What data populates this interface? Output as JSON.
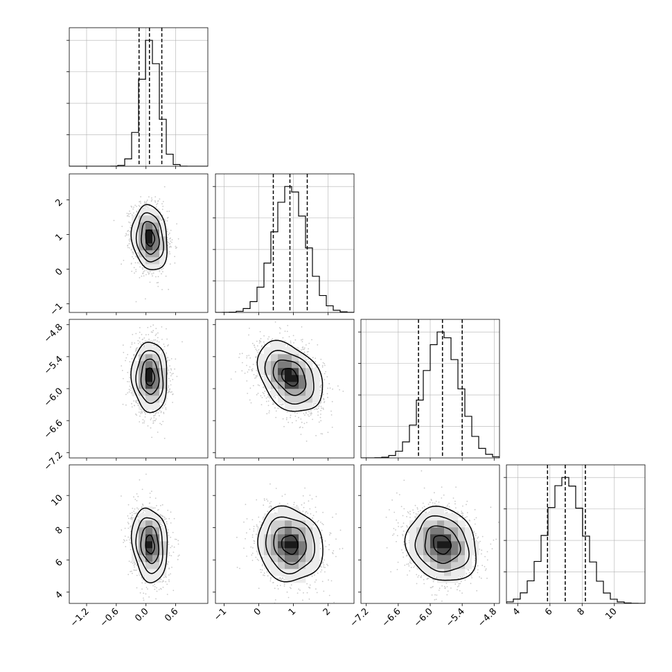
{
  "chart_data": {
    "type": "corner",
    "grid": true,
    "x_tick_rotation_deg": 45,
    "parameters": [
      {
        "range": [
          -1.55,
          1.25
        ],
        "ticks": [
          -1.2,
          -0.6,
          0.0,
          0.6
        ],
        "tick_labels": [
          "−1.2",
          "−0.6",
          "0.0",
          "0.6"
        ],
        "mean": 0.08,
        "std": 0.18,
        "quantiles": [
          -0.14,
          0.07,
          0.32
        ]
      },
      {
        "range": [
          -1.25,
          2.75
        ],
        "ticks": [
          -1,
          0,
          1,
          2
        ],
        "tick_labels": [
          "−1",
          "0",
          "1",
          "2"
        ],
        "mean": 0.9,
        "std": 0.47,
        "quantiles": [
          0.42,
          0.9,
          1.4
        ]
      },
      {
        "range": [
          -7.3,
          -4.7
        ],
        "ticks": [
          -7.2,
          -6.6,
          -6.0,
          -5.4,
          -4.8
        ],
        "tick_labels": [
          "−7.2",
          "−6.6",
          "−6.0",
          "−5.4",
          "−4.8"
        ],
        "mean": -5.78,
        "std": 0.33,
        "quantiles": [
          -6.22,
          -5.77,
          -5.4
        ]
      },
      {
        "range": [
          3.3,
          11.9
        ],
        "ticks": [
          4,
          6,
          8,
          10
        ],
        "tick_labels": [
          "4",
          "6",
          "8",
          "10"
        ],
        "mean": 6.95,
        "std": 1.15,
        "quantiles": [
          5.85,
          6.95,
          8.2
        ]
      }
    ],
    "correlations": {
      "1-0": -0.15,
      "2-0": -0.05,
      "2-1": -0.35,
      "3-0": -0.15,
      "3-1": -0.1,
      "3-2": -0.15
    },
    "contour_levels_sigma": [
      0.5,
      1.0,
      1.5,
      2.0
    ]
  }
}
